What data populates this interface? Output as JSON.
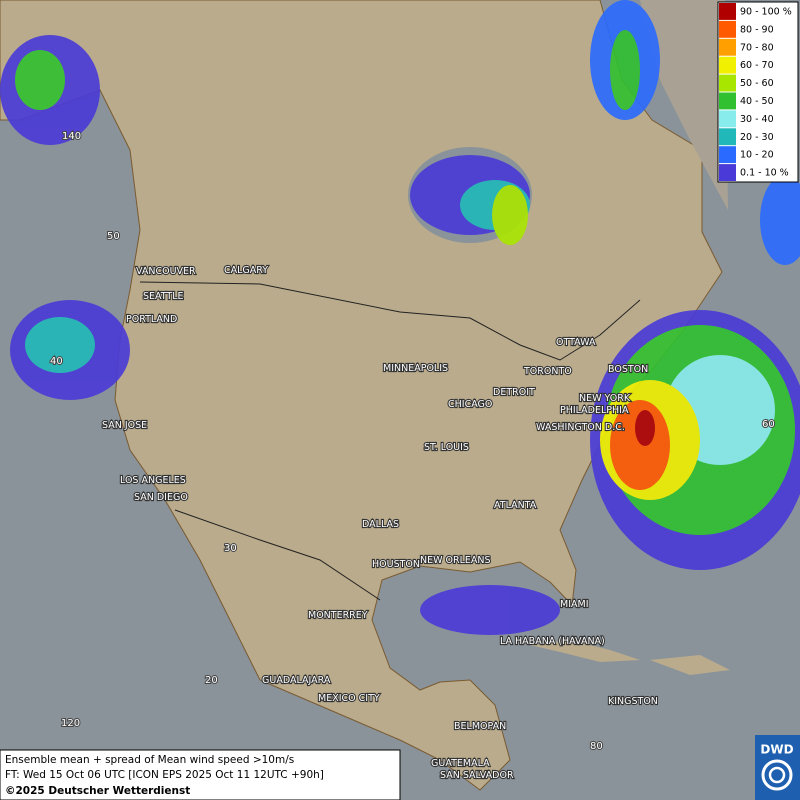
{
  "legend": {
    "items": [
      {
        "label": "90 - 100 %",
        "color": "#b00000"
      },
      {
        "label": "80 - 90",
        "color": "#ff5a00"
      },
      {
        "label": "70 - 80",
        "color": "#ffa000"
      },
      {
        "label": "60 - 70",
        "color": "#f0f000"
      },
      {
        "label": "50 - 60",
        "color": "#a8e600"
      },
      {
        "label": "40 - 50",
        "color": "#30c030"
      },
      {
        "label": "30 - 40",
        "color": "#88ecec"
      },
      {
        "label": "20 - 30",
        "color": "#20b8b8"
      },
      {
        "label": "10 - 20",
        "color": "#2a6aff"
      },
      {
        "label": "0.1 - 10 %",
        "color": "#4a3ad8"
      }
    ]
  },
  "cities": [
    "VANCOUVER",
    "CALGARY",
    "SEATTLE",
    "PORTLAND",
    "OTTAWA",
    "BOSTON",
    "MINNEAPOLIS",
    "TORONTO",
    "DETROIT",
    "NEW YORK",
    "PHILADELPHIA",
    "CHICAGO",
    "SAN JOSE",
    "WASHINGTON D.C.",
    "ST. LOUIS",
    "LOS ANGELES",
    "SAN DIEGO",
    "ATLANTA",
    "DALLAS",
    "HOUSTON",
    "NEW ORLEANS",
    "MIAMI",
    "MONTERREY",
    "LA HABANA (HAVANA)",
    "GUADALAJARA",
    "MEXICO CITY",
    "KINGSTON",
    "BELMOPAN",
    "GUATEMALA",
    "SAN SALVADOR"
  ],
  "grid_labels": [
    "140",
    "50",
    "40",
    "30",
    "20",
    "120",
    "60",
    "80"
  ],
  "caption": {
    "lines": [
      "Ensemble mean + spread of Mean wind speed >10m/s",
      "FT: Wed 15 Oct 06 UTC [ICON EPS 2025 Oct 11 12UTC +90h]",
      "©2025 Deutscher Wetterdienst"
    ]
  },
  "logo": {
    "text": "DWD"
  }
}
